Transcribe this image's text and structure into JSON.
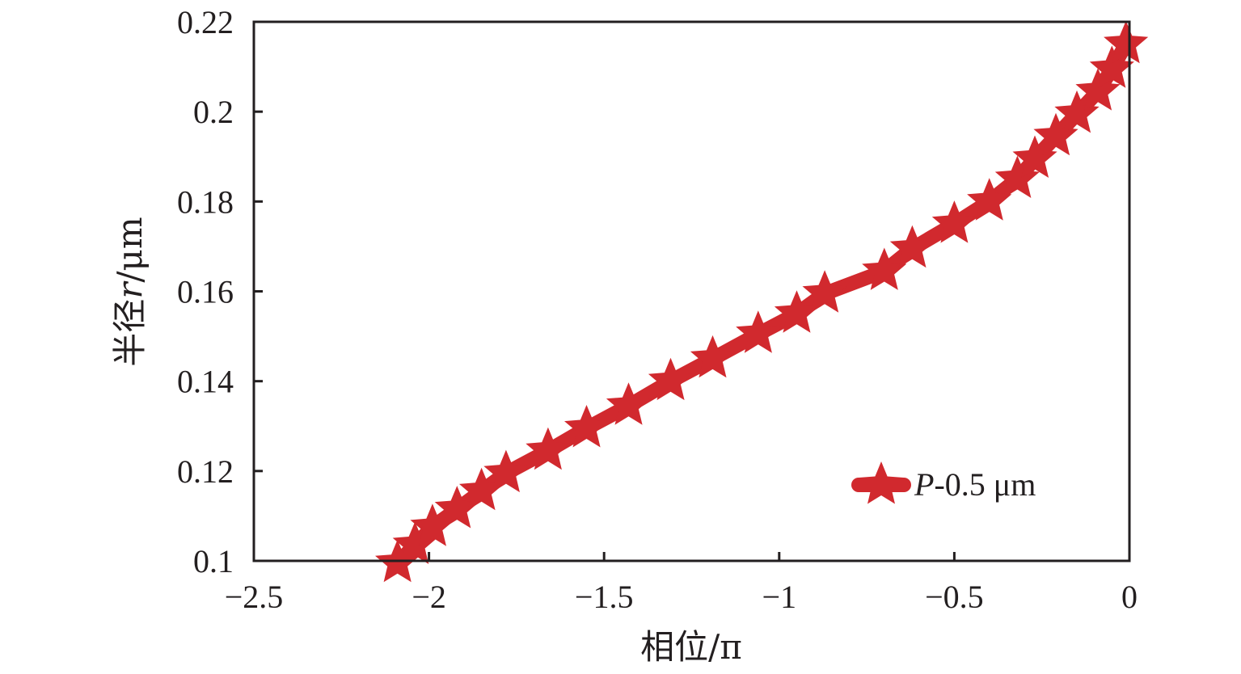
{
  "chart_data": {
    "type": "line",
    "xlabel": "相位/π",
    "ylabel": "半径r/μm",
    "ylabel_parts": {
      "pre": "半径",
      "italic": "r",
      "post": "/μm"
    },
    "xlim": [
      -2.5,
      0
    ],
    "ylim": [
      0.1,
      0.22
    ],
    "x_ticks": [
      -2.5,
      -2,
      -1.5,
      -1,
      -0.5,
      0
    ],
    "x_tick_labels": [
      "−2.5",
      "−2",
      "−1.5",
      "−1",
      "−0.5",
      "0"
    ],
    "y_ticks": [
      0.1,
      0.12,
      0.14,
      0.16,
      0.18,
      0.2,
      0.22
    ],
    "y_tick_labels": [
      "0.1",
      "0.12",
      "0.14",
      "0.16",
      "0.18",
      "0.2",
      "0.22"
    ],
    "grid": false,
    "legend_position": "bottom-right",
    "series": [
      {
        "name": "P-0.5 μm",
        "name_parts": {
          "italic": "P",
          "rest": "-0.5 μm"
        },
        "color": "#d1292e",
        "marker": "star",
        "x": [
          -2.09,
          -2.04,
          -1.99,
          -1.92,
          -1.85,
          -1.78,
          -1.66,
          -1.55,
          -1.43,
          -1.31,
          -1.19,
          -1.06,
          -0.95,
          -0.87,
          -0.7,
          -0.62,
          -0.5,
          -0.4,
          -0.32,
          -0.27,
          -0.21,
          -0.15,
          -0.09,
          -0.05,
          -0.01
        ],
        "y": [
          0.0995,
          0.1035,
          0.1075,
          0.1115,
          0.1155,
          0.1195,
          0.1245,
          0.1295,
          0.1345,
          0.14,
          0.145,
          0.1505,
          0.155,
          0.1595,
          0.1645,
          0.1695,
          0.175,
          0.18,
          0.185,
          0.1895,
          0.1945,
          0.1995,
          0.2045,
          0.2095,
          0.215
        ]
      }
    ]
  }
}
